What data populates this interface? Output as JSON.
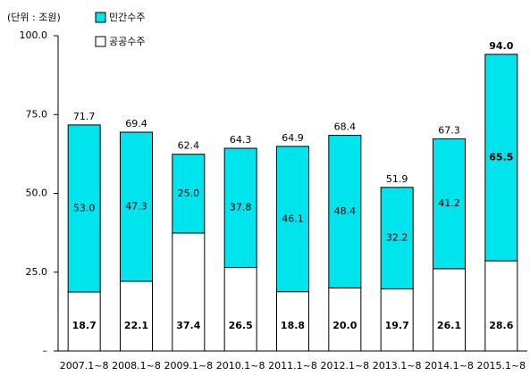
{
  "chart_data": {
    "type": "stacked-bar",
    "unit_label": "(단위 : 조원)",
    "categories": [
      "2007.1~8",
      "2008.1~8",
      "2009.1~8",
      "2010.1~8",
      "2011.1~8",
      "2012.1~8",
      "2013.1~8",
      "2014.1~8",
      "2015.1~8"
    ],
    "series": [
      {
        "name": "공공수주",
        "color": "#ffffff",
        "values": [
          18.7,
          22.1,
          37.4,
          26.5,
          18.8,
          20.0,
          19.7,
          26.1,
          28.6
        ],
        "value_labels": [
          "18.7",
          "22.1",
          "37.4",
          "26.5",
          "18.8",
          "20.0",
          "19.7",
          "26.1",
          "28.6"
        ]
      },
      {
        "name": "민간수주",
        "color": "#00e4ee",
        "values": [
          53.0,
          47.3,
          25.0,
          37.8,
          46.1,
          48.4,
          32.2,
          41.2,
          65.5
        ],
        "value_labels": [
          "53.0",
          "47.3",
          "25.0",
          "37.8",
          "46.1",
          "48.4",
          "32.2",
          "41.2",
          "65.5"
        ]
      }
    ],
    "totals": [
      71.7,
      69.4,
      62.4,
      64.3,
      64.9,
      68.4,
      51.9,
      67.3,
      94.0
    ],
    "total_labels": [
      "71.7",
      "69.4",
      "62.4",
      "64.3",
      "64.9",
      "68.4",
      "51.9",
      "67.3",
      "94.0"
    ],
    "ylim": [
      0,
      100
    ],
    "yticks": [
      {
        "value": 0,
        "label": "–"
      },
      {
        "value": 25,
        "label": "25.0"
      },
      {
        "value": 50,
        "label": "50.0"
      },
      {
        "value": 75,
        "label": "75.0"
      },
      {
        "value": 100,
        "label": "100.0"
      }
    ],
    "grid": false
  }
}
